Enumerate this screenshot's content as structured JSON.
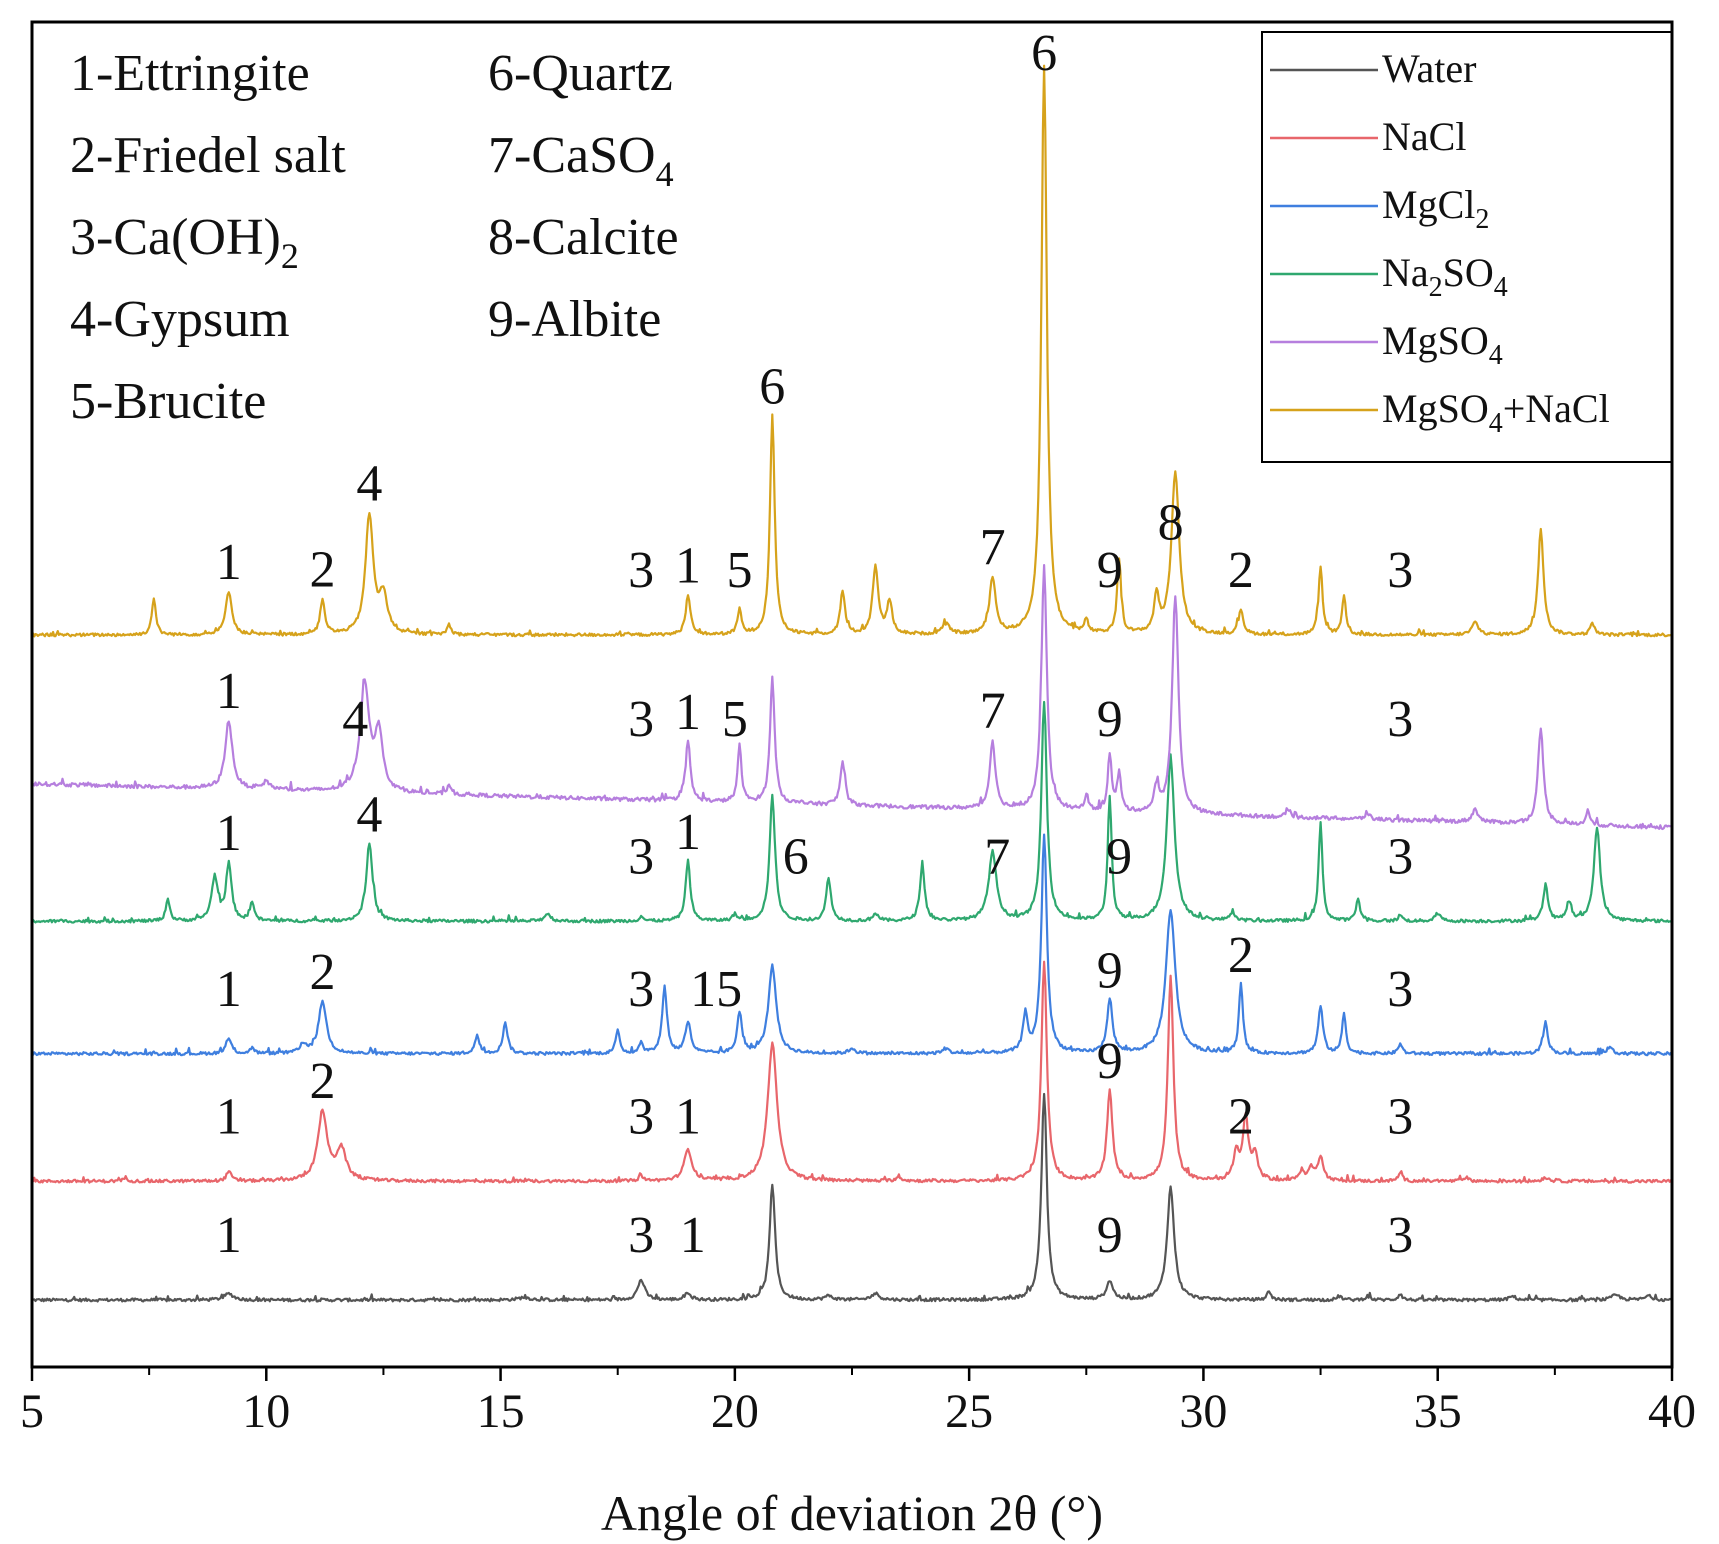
{
  "chart_data": {
    "type": "line",
    "title": "",
    "xlabel": "Angle of deviation 2θ (°)",
    "ylabel": "",
    "xlim": [
      5,
      40
    ],
    "xticks": [
      5,
      10,
      15,
      20,
      25,
      30,
      35,
      40
    ],
    "grid": false,
    "legend_position": "top-right",
    "phase_key": {
      "left": [
        {
          "text": "1-Ettringite",
          "sub": ""
        },
        {
          "text": "2-Friedel salt",
          "sub": ""
        },
        {
          "text": "3-Ca(OH)",
          "sub": "2"
        },
        {
          "text": "4-Gypsum",
          "sub": ""
        },
        {
          "text": "5-Brucite",
          "sub": ""
        }
      ],
      "right": [
        {
          "text": "6-Quartz",
          "sub": ""
        },
        {
          "text": "7-CaSO",
          "sub": "4"
        },
        {
          "text": "8-Calcite",
          "sub": ""
        },
        {
          "text": "9-Albite",
          "sub": ""
        }
      ]
    },
    "series": [
      {
        "name": "Water",
        "legend": [
          {
            "t": "Water"
          }
        ],
        "color": "#555555",
        "baseline": 0.0,
        "base_slope": 0.0,
        "noise": 0.012,
        "peaks": [
          [
            9.2,
            0.05,
            0.12
          ],
          [
            15.5,
            0.02,
            0.15
          ],
          [
            18.0,
            0.16,
            0.09
          ],
          [
            19.0,
            0.06,
            0.07
          ],
          [
            20.8,
            0.93,
            0.07
          ],
          [
            22.0,
            0.03,
            0.1
          ],
          [
            23.0,
            0.05,
            0.1
          ],
          [
            26.6,
            1.65,
            0.07
          ],
          [
            28.0,
            0.15,
            0.08
          ],
          [
            29.3,
            0.9,
            0.09
          ],
          [
            31.4,
            0.07,
            0.05
          ],
          [
            32.9,
            0.03,
            0.06
          ],
          [
            33.5,
            0.03,
            0.06
          ],
          [
            34.2,
            0.05,
            0.05
          ],
          [
            36.6,
            0.03,
            0.08
          ],
          [
            38.8,
            0.04,
            0.1
          ],
          [
            39.5,
            0.03,
            0.1
          ]
        ],
        "labels": [
          {
            "text": "1",
            "x": 9.2
          },
          {
            "text": "3",
            "x": 18.0
          },
          {
            "text": "1",
            "x": 19.1
          },
          {
            "text": "9",
            "x": 28.0
          },
          {
            "text": "3",
            "x": 34.2
          }
        ]
      },
      {
        "name": "NaCl",
        "legend": [
          {
            "t": "NaCl"
          }
        ],
        "color": "#e8666b",
        "baseline": 0.95,
        "base_slope": 0.0,
        "noise": 0.012,
        "peaks": [
          [
            7.0,
            0.03,
            0.05
          ],
          [
            9.2,
            0.08,
            0.06
          ],
          [
            11.2,
            0.55,
            0.12
          ],
          [
            11.6,
            0.25,
            0.12
          ],
          [
            18.0,
            0.04,
            0.06
          ],
          [
            19.0,
            0.25,
            0.1
          ],
          [
            20.8,
            1.1,
            0.12
          ],
          [
            23.5,
            0.03,
            0.08
          ],
          [
            26.6,
            1.75,
            0.07
          ],
          [
            28.0,
            0.72,
            0.07
          ],
          [
            29.3,
            1.65,
            0.07
          ],
          [
            30.7,
            0.22,
            0.07
          ],
          [
            30.9,
            0.5,
            0.07
          ],
          [
            31.1,
            0.2,
            0.07
          ],
          [
            32.1,
            0.08,
            0.07
          ],
          [
            32.3,
            0.1,
            0.06
          ],
          [
            32.5,
            0.2,
            0.07
          ],
          [
            34.2,
            0.06,
            0.06
          ],
          [
            35.6,
            0.03,
            0.07
          ],
          [
            37.3,
            0.03,
            0.08
          ]
        ],
        "labels": [
          {
            "text": "1",
            "x": 9.2
          },
          {
            "text": "2",
            "x": 11.2
          },
          {
            "text": "3",
            "x": 18.0
          },
          {
            "text": "1",
            "x": 19.0
          },
          {
            "text": "9",
            "x": 28.0
          },
          {
            "text": "2",
            "x": 30.8
          },
          {
            "text": "3",
            "x": 34.2
          }
        ]
      },
      {
        "name": "MgCl2",
        "legend": [
          {
            "t": "MgCl"
          },
          {
            "t": "2",
            "sub": true
          }
        ],
        "color": "#3f7fdf",
        "baseline": 1.97,
        "base_slope": 0.0,
        "noise": 0.012,
        "peaks": [
          [
            9.2,
            0.12,
            0.07
          ],
          [
            9.7,
            0.05,
            0.05
          ],
          [
            10.8,
            0.07,
            0.08
          ],
          [
            11.2,
            0.42,
            0.1
          ],
          [
            14.5,
            0.14,
            0.06
          ],
          [
            15.1,
            0.25,
            0.06
          ],
          [
            17.5,
            0.2,
            0.05
          ],
          [
            18.0,
            0.09,
            0.05
          ],
          [
            18.5,
            0.54,
            0.06
          ],
          [
            19.0,
            0.25,
            0.07
          ],
          [
            20.1,
            0.33,
            0.06
          ],
          [
            20.8,
            0.7,
            0.1
          ],
          [
            22.5,
            0.04,
            0.08
          ],
          [
            24.5,
            0.04,
            0.08
          ],
          [
            26.2,
            0.3,
            0.06
          ],
          [
            26.6,
            1.75,
            0.07
          ],
          [
            28.0,
            0.42,
            0.07
          ],
          [
            29.3,
            1.15,
            0.12
          ],
          [
            30.8,
            0.55,
            0.05
          ],
          [
            32.5,
            0.38,
            0.06
          ],
          [
            33.0,
            0.32,
            0.05
          ],
          [
            34.2,
            0.08,
            0.05
          ],
          [
            37.3,
            0.25,
            0.06
          ],
          [
            38.7,
            0.05,
            0.06
          ]
        ],
        "labels": [
          {
            "text": "1",
            "x": 9.2
          },
          {
            "text": "2",
            "x": 11.2
          },
          {
            "text": "3",
            "x": 18.0
          },
          {
            "text": "15",
            "x": 19.6
          },
          {
            "text": "9",
            "x": 28.0
          },
          {
            "text": "2",
            "x": 30.8
          },
          {
            "text": "3",
            "x": 34.2
          }
        ]
      },
      {
        "name": "Na2SO4",
        "legend": [
          {
            "t": "Na"
          },
          {
            "t": "2",
            "sub": true
          },
          {
            "t": "SO"
          },
          {
            "t": "4",
            "sub": true
          }
        ],
        "color": "#2fa86f",
        "baseline": 3.03,
        "base_slope": 0.0,
        "noise": 0.012,
        "peaks": [
          [
            7.9,
            0.18,
            0.05
          ],
          [
            8.9,
            0.35,
            0.08
          ],
          [
            9.2,
            0.45,
            0.07
          ],
          [
            9.7,
            0.15,
            0.05
          ],
          [
            12.2,
            0.62,
            0.08
          ],
          [
            16.0,
            0.06,
            0.08
          ],
          [
            18.0,
            0.04,
            0.05
          ],
          [
            19.0,
            0.48,
            0.06
          ],
          [
            20.0,
            0.05,
            0.06
          ],
          [
            20.8,
            1.0,
            0.07
          ],
          [
            22.0,
            0.35,
            0.06
          ],
          [
            23.0,
            0.06,
            0.07
          ],
          [
            24.0,
            0.45,
            0.06
          ],
          [
            25.5,
            0.55,
            0.1
          ],
          [
            26.6,
            1.75,
            0.07
          ],
          [
            28.0,
            1.0,
            0.05
          ],
          [
            29.3,
            1.3,
            0.1
          ],
          [
            30.6,
            0.06,
            0.07
          ],
          [
            32.5,
            0.78,
            0.05
          ],
          [
            33.3,
            0.18,
            0.05
          ],
          [
            34.2,
            0.05,
            0.05
          ],
          [
            35.0,
            0.06,
            0.07
          ],
          [
            37.3,
            0.28,
            0.06
          ],
          [
            37.8,
            0.15,
            0.06
          ],
          [
            38.4,
            0.75,
            0.08
          ]
        ],
        "labels": [
          {
            "text": "1",
            "x": 9.2
          },
          {
            "text": "4",
            "x": 12.2
          },
          {
            "text": "3",
            "x": 18.0
          },
          {
            "text": "1",
            "x": 19.0
          },
          {
            "text": "6",
            "x": 21.3
          },
          {
            "text": "7",
            "x": 25.6
          },
          {
            "text": "9",
            "x": 28.2
          },
          {
            "text": "3",
            "x": 34.2
          }
        ]
      },
      {
        "name": "MgSO4",
        "legend": [
          {
            "t": "MgSO"
          },
          {
            "t": "4",
            "sub": true
          }
        ],
        "color": "#b67fde",
        "baseline": 4.13,
        "base_slope": -0.01,
        "noise": 0.015,
        "peaks": [
          [
            9.2,
            0.55,
            0.09
          ],
          [
            10.0,
            0.06,
            0.1
          ],
          [
            12.1,
            0.85,
            0.12
          ],
          [
            12.4,
            0.45,
            0.1
          ],
          [
            13.9,
            0.08,
            0.05
          ],
          [
            19.0,
            0.48,
            0.06
          ],
          [
            20.1,
            0.45,
            0.05
          ],
          [
            20.8,
            1.0,
            0.06
          ],
          [
            22.3,
            0.35,
            0.06
          ],
          [
            25.5,
            0.55,
            0.07
          ],
          [
            26.6,
            1.95,
            0.07
          ],
          [
            27.5,
            0.12,
            0.05
          ],
          [
            28.0,
            0.45,
            0.05
          ],
          [
            28.2,
            0.3,
            0.05
          ],
          [
            29.0,
            0.2,
            0.06
          ],
          [
            29.4,
            1.75,
            0.08
          ],
          [
            31.8,
            0.04,
            0.06
          ],
          [
            33.5,
            0.05,
            0.06
          ],
          [
            35.8,
            0.1,
            0.08
          ],
          [
            37.2,
            0.75,
            0.07
          ],
          [
            38.2,
            0.12,
            0.05
          ]
        ],
        "labels": [
          {
            "text": "1",
            "x": 9.2
          },
          {
            "text": "4",
            "x": 11.9
          },
          {
            "text": "3",
            "x": 18.0
          },
          {
            "text": "1",
            "x": 19.0
          },
          {
            "text": "5",
            "x": 20.0
          },
          {
            "text": "7",
            "x": 25.5
          },
          {
            "text": "9",
            "x": 28.0
          },
          {
            "text": "3",
            "x": 34.2
          }
        ]
      },
      {
        "name": "MgSO4+NaCl",
        "legend": [
          {
            "t": "MgSO"
          },
          {
            "t": "4",
            "sub": true
          },
          {
            "t": "+NaCl"
          }
        ],
        "color": "#d6a21b",
        "baseline": 5.32,
        "base_slope": 0.0,
        "noise": 0.012,
        "peaks": [
          [
            7.6,
            0.3,
            0.05
          ],
          [
            9.2,
            0.35,
            0.08
          ],
          [
            11.2,
            0.28,
            0.06
          ],
          [
            12.2,
            0.95,
            0.1
          ],
          [
            12.5,
            0.3,
            0.1
          ],
          [
            13.9,
            0.08,
            0.05
          ],
          [
            19.0,
            0.32,
            0.06
          ],
          [
            20.1,
            0.2,
            0.05
          ],
          [
            20.8,
            1.75,
            0.06
          ],
          [
            22.3,
            0.35,
            0.06
          ],
          [
            23.0,
            0.55,
            0.07
          ],
          [
            23.3,
            0.25,
            0.07
          ],
          [
            24.5,
            0.08,
            0.1
          ],
          [
            25.5,
            0.45,
            0.08
          ],
          [
            26.6,
            4.55,
            0.07
          ],
          [
            27.5,
            0.1,
            0.05
          ],
          [
            28.2,
            0.6,
            0.05
          ],
          [
            29.0,
            0.3,
            0.06
          ],
          [
            29.4,
            1.3,
            0.1
          ],
          [
            30.8,
            0.2,
            0.06
          ],
          [
            32.5,
            0.55,
            0.05
          ],
          [
            33.0,
            0.3,
            0.05
          ],
          [
            35.8,
            0.1,
            0.08
          ],
          [
            37.2,
            0.85,
            0.07
          ],
          [
            38.3,
            0.1,
            0.05
          ]
        ],
        "labels": [
          {
            "text": "1",
            "x": 9.2
          },
          {
            "text": "2",
            "x": 11.2
          },
          {
            "text": "4",
            "x": 12.2
          },
          {
            "text": "3",
            "x": 18.0
          },
          {
            "text": "1",
            "x": 19.0
          },
          {
            "text": "5",
            "x": 20.1
          },
          {
            "text": "6",
            "x": 20.8
          },
          {
            "text": "7",
            "x": 25.5
          },
          {
            "text": "6",
            "x": 26.6
          },
          {
            "text": "9",
            "x": 28.0
          },
          {
            "text": "8",
            "x": 29.3
          },
          {
            "text": "2",
            "x": 30.8
          },
          {
            "text": "3",
            "x": 34.2
          }
        ]
      }
    ]
  }
}
